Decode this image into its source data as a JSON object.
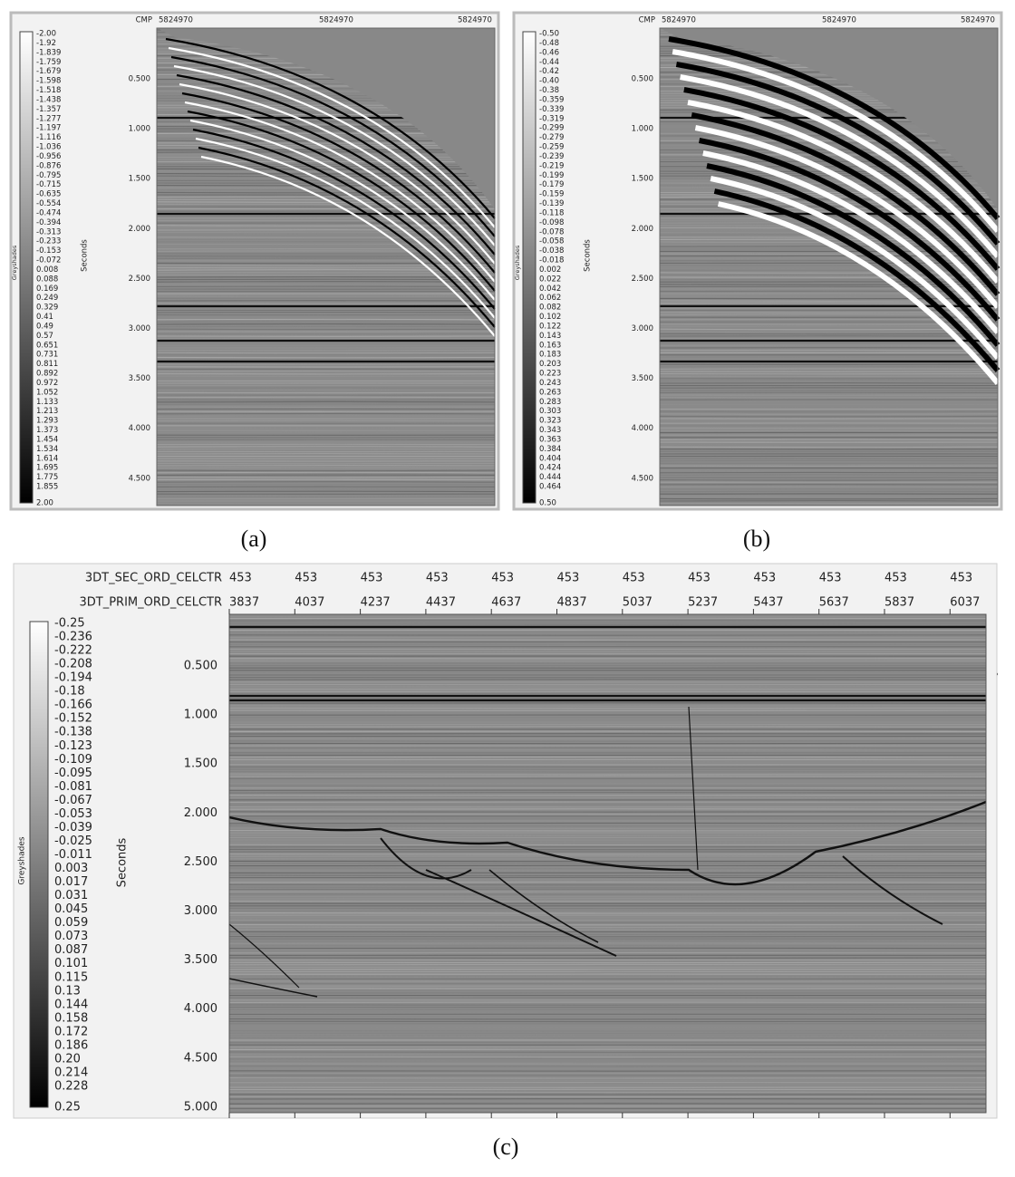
{
  "panels": [
    {
      "caption": "(a)",
      "cmp_label": "CMP",
      "cmp_ticks": [
        "5824970",
        "5824970",
        "5824970"
      ],
      "colorbar_title": "Greyshades",
      "y_axis_label": "Seconds",
      "y_ticks": [
        "0.500",
        "1.000",
        "1.500",
        "2.000",
        "2.500",
        "3.000",
        "3.500",
        "4.000",
        "4.500"
      ],
      "colorbar_labels": [
        "-2.00",
        "-1.92",
        "-1.839",
        "-1.759",
        "-1.679",
        "-1.598",
        "-1.518",
        "-1.438",
        "-1.357",
        "-1.277",
        "-1.197",
        "-1.116",
        "-1.036",
        "-0.956",
        "-0.876",
        "-0.795",
        "-0.715",
        "-0.635",
        "-0.554",
        "-0.474",
        "-0.394",
        "-0.313",
        "-0.233",
        "-0.153",
        "-0.072",
        "0.008",
        "0.088",
        "0.169",
        "0.249",
        "0.329",
        "0.41",
        "0.49",
        "0.57",
        "0.651",
        "0.731",
        "0.811",
        "0.892",
        "0.972",
        "1.052",
        "1.133",
        "1.213",
        "1.293",
        "1.373",
        "1.454",
        "1.534",
        "1.614",
        "1.695",
        "1.775",
        "1.855",
        "2.00"
      ]
    },
    {
      "caption": "(b)",
      "cmp_label": "CMP",
      "cmp_ticks": [
        "5824970",
        "5824970",
        "5824970"
      ],
      "colorbar_title": "Greyshades",
      "y_axis_label": "Seconds",
      "y_ticks": [
        "0.500",
        "1.000",
        "1.500",
        "2.000",
        "2.500",
        "3.000",
        "3.500",
        "4.000",
        "4.500"
      ],
      "colorbar_labels": [
        "-0.50",
        "-0.48",
        "-0.46",
        "-0.44",
        "-0.42",
        "-0.40",
        "-0.38",
        "-0.359",
        "-0.339",
        "-0.319",
        "-0.299",
        "-0.279",
        "-0.259",
        "-0.239",
        "-0.219",
        "-0.199",
        "-0.179",
        "-0.159",
        "-0.139",
        "-0.118",
        "-0.098",
        "-0.078",
        "-0.058",
        "-0.038",
        "-0.018",
        "0.002",
        "0.022",
        "0.042",
        "0.062",
        "0.082",
        "0.102",
        "0.122",
        "0.143",
        "0.163",
        "0.183",
        "0.203",
        "0.223",
        "0.243",
        "0.263",
        "0.283",
        "0.303",
        "0.323",
        "0.343",
        "0.363",
        "0.384",
        "0.404",
        "0.424",
        "0.444",
        "0.464",
        "0.50"
      ]
    },
    {
      "caption": "(c)",
      "header_rows": [
        {
          "label": "3DT_SEC_ORD_CELCTR",
          "ticks": [
            "453",
            "453",
            "453",
            "453",
            "453",
            "453",
            "453",
            "453",
            "453",
            "453",
            "453",
            "453"
          ]
        },
        {
          "label": "3DT_PRIM_ORD_CELCTR",
          "ticks": [
            "3837",
            "4037",
            "4237",
            "4437",
            "4637",
            "4837",
            "5037",
            "5237",
            "5437",
            "5637",
            "5837",
            "6037"
          ]
        }
      ],
      "colorbar_title": "Greyshades",
      "y_axis_label": "Seconds",
      "y_ticks": [
        "0.500",
        "1.000",
        "1.500",
        "2.000",
        "2.500",
        "3.000",
        "3.500",
        "4.000",
        "4.500",
        "5.000"
      ],
      "colorbar_labels": [
        "-0.25",
        "-0.236",
        "-0.222",
        "-0.208",
        "-0.194",
        "-0.18",
        "-0.166",
        "-0.152",
        "-0.138",
        "-0.123",
        "-0.109",
        "-0.095",
        "-0.081",
        "-0.067",
        "-0.053",
        "-0.039",
        "-0.025",
        "-0.011",
        "0.003",
        "0.017",
        "0.031",
        "0.045",
        "0.059",
        "0.073",
        "0.087",
        "0.101",
        "0.115",
        "0.13",
        "0.144",
        "0.158",
        "0.172",
        "0.186",
        "0.20",
        "0.214",
        "0.228",
        "0.25"
      ]
    }
  ]
}
